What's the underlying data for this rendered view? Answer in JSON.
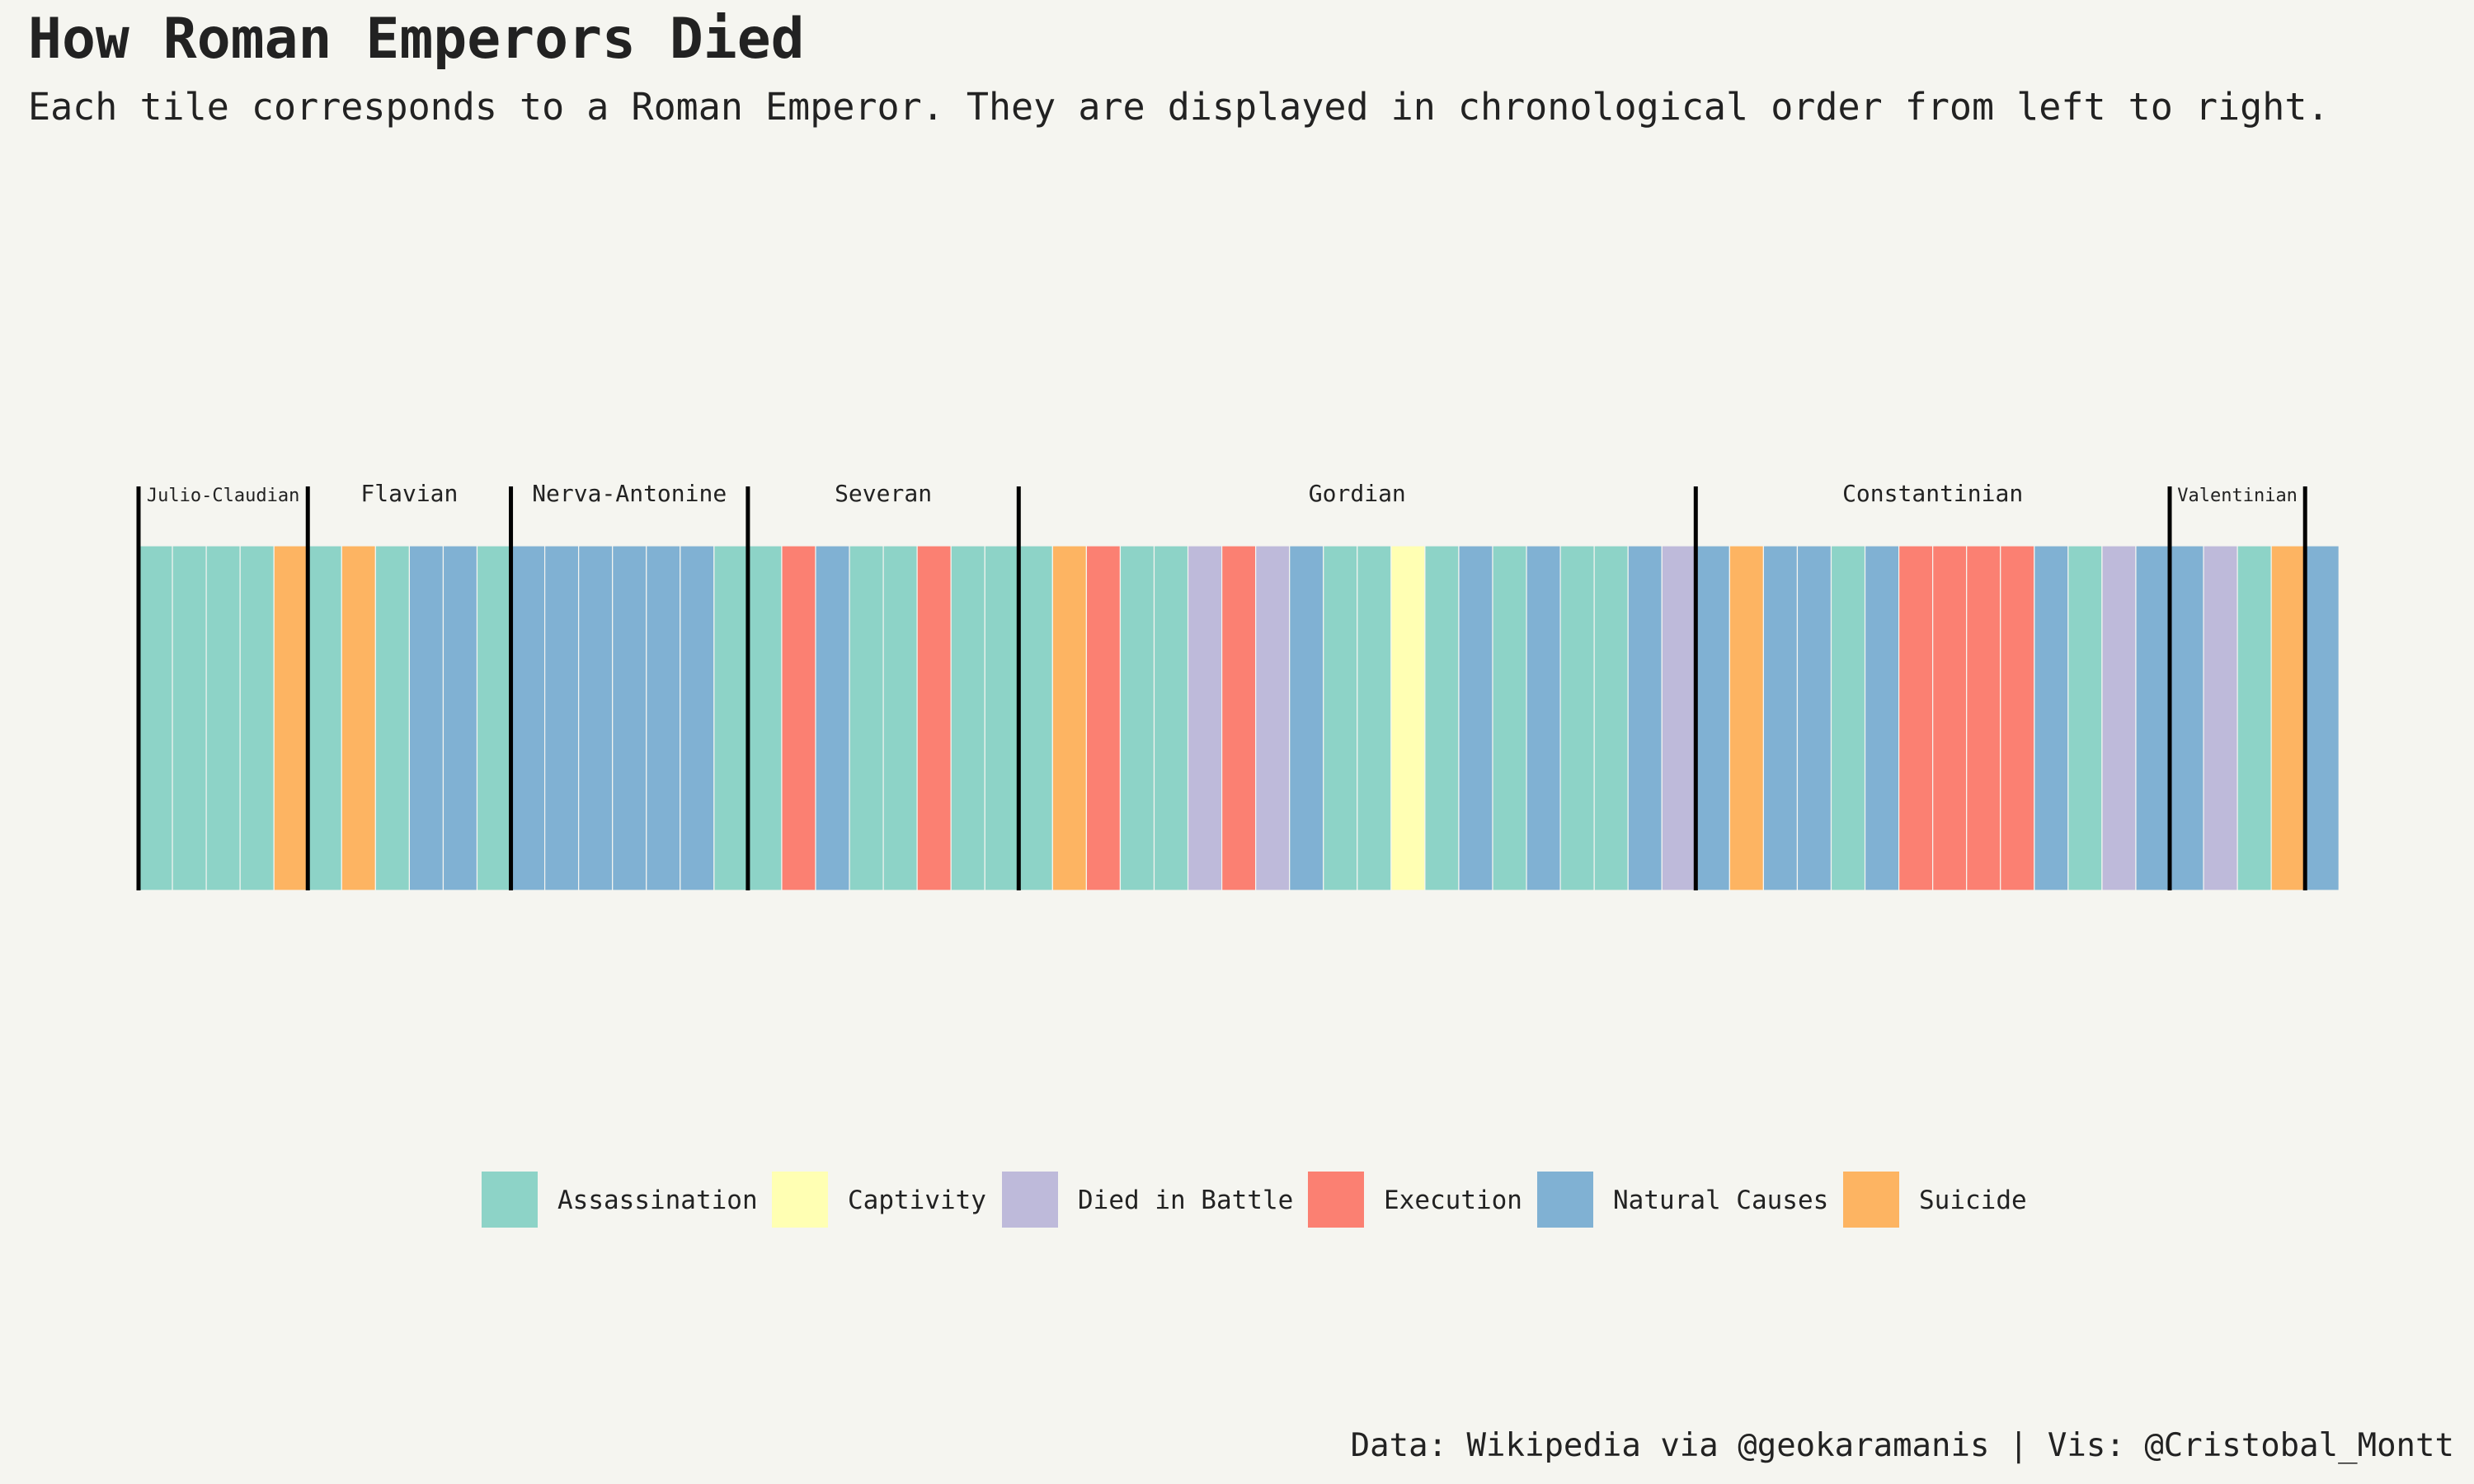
{
  "title": "How Roman Emperors Died",
  "subtitle": "Each tile corresponds to a Roman Emperor. They are displayed in chronological order from left to right.",
  "caption": "Data: Wikipedia via @geokaramanis | Vis: @Cristobal_Montt",
  "colors": {
    "Assassination": "#8dd3c7",
    "Captivity": "#ffffb3",
    "Died in Battle": "#bebada",
    "Execution": "#fb8072",
    "Natural Causes": "#80b1d3",
    "Suicide": "#fdb462",
    "background": "#f5f5f0",
    "divider": "#000000"
  },
  "legend": [
    {
      "label": "Assassination"
    },
    {
      "label": "Captivity"
    },
    {
      "label": "Died in Battle"
    },
    {
      "label": "Execution"
    },
    {
      "label": "Natural Causes"
    },
    {
      "label": "Suicide"
    }
  ],
  "chart_data": {
    "type": "heatmap",
    "categories": [
      "Assassination",
      "Captivity",
      "Died in Battle",
      "Execution",
      "Natural Causes",
      "Suicide"
    ],
    "dynasties": [
      {
        "name": "Julio-Claudian",
        "causes": [
          "Assassination",
          "Assassination",
          "Assassination",
          "Assassination",
          "Suicide"
        ]
      },
      {
        "name": "Flavian",
        "causes": [
          "Assassination",
          "Suicide",
          "Assassination",
          "Natural Causes",
          "Natural Causes",
          "Assassination"
        ]
      },
      {
        "name": "Nerva-Antonine",
        "causes": [
          "Natural Causes",
          "Natural Causes",
          "Natural Causes",
          "Natural Causes",
          "Natural Causes",
          "Natural Causes",
          "Assassination"
        ]
      },
      {
        "name": "Severan",
        "causes": [
          "Assassination",
          "Execution",
          "Natural Causes",
          "Assassination",
          "Assassination",
          "Execution",
          "Assassination",
          "Assassination"
        ]
      },
      {
        "name": "Gordian",
        "causes": [
          "Assassination",
          "Suicide",
          "Execution",
          "Assassination",
          "Assassination",
          "Died in Battle",
          "Execution",
          "Died in Battle",
          "Natural Causes",
          "Assassination",
          "Assassination",
          "Captivity",
          "Assassination",
          "Natural Causes",
          "Assassination",
          "Natural Causes",
          "Assassination",
          "Assassination",
          "Natural Causes",
          "Died in Battle"
        ]
      },
      {
        "name": "Constantinian",
        "causes": [
          "Natural Causes",
          "Suicide",
          "Natural Causes",
          "Natural Causes",
          "Assassination",
          "Natural Causes",
          "Execution",
          "Execution",
          "Execution",
          "Execution",
          "Natural Causes",
          "Assassination",
          "Died in Battle",
          "Natural Causes"
        ]
      },
      {
        "name": "Valentinian",
        "causes": [
          "Natural Causes",
          "Died in Battle",
          "Assassination",
          "Suicide"
        ]
      },
      {
        "name": "",
        "causes": [
          "Natural Causes"
        ]
      }
    ]
  }
}
